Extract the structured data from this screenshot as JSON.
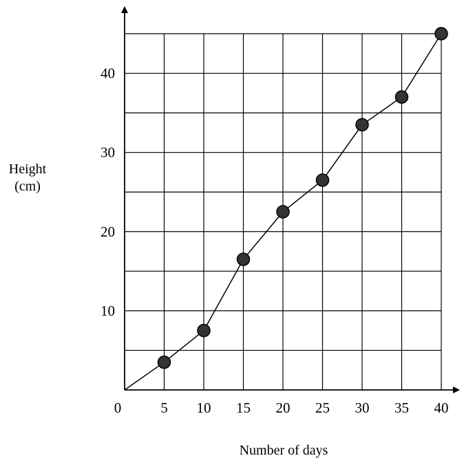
{
  "chart_data": {
    "type": "line",
    "title": "",
    "xlabel": "Number of days",
    "ylabel": [
      "Height",
      "(cm)"
    ],
    "origin_label": "0",
    "x_ticks": [
      "5",
      "10",
      "15",
      "20",
      "25",
      "30",
      "35",
      "40"
    ],
    "y_ticks": [
      "10",
      "20",
      "30",
      "40"
    ],
    "xlim": [
      0,
      40
    ],
    "ylim": [
      0,
      45
    ],
    "grid": true,
    "series": [
      {
        "x": [
          0,
          5,
          10,
          15,
          20,
          25,
          30,
          35,
          40
        ],
        "y": [
          0,
          3.5,
          7.5,
          16.5,
          22.5,
          26.5,
          33.5,
          37,
          45
        ],
        "markers_from_index": 1
      }
    ],
    "colors": {
      "line": "#000000",
      "marker": "#333333",
      "grid": "#000000"
    }
  }
}
